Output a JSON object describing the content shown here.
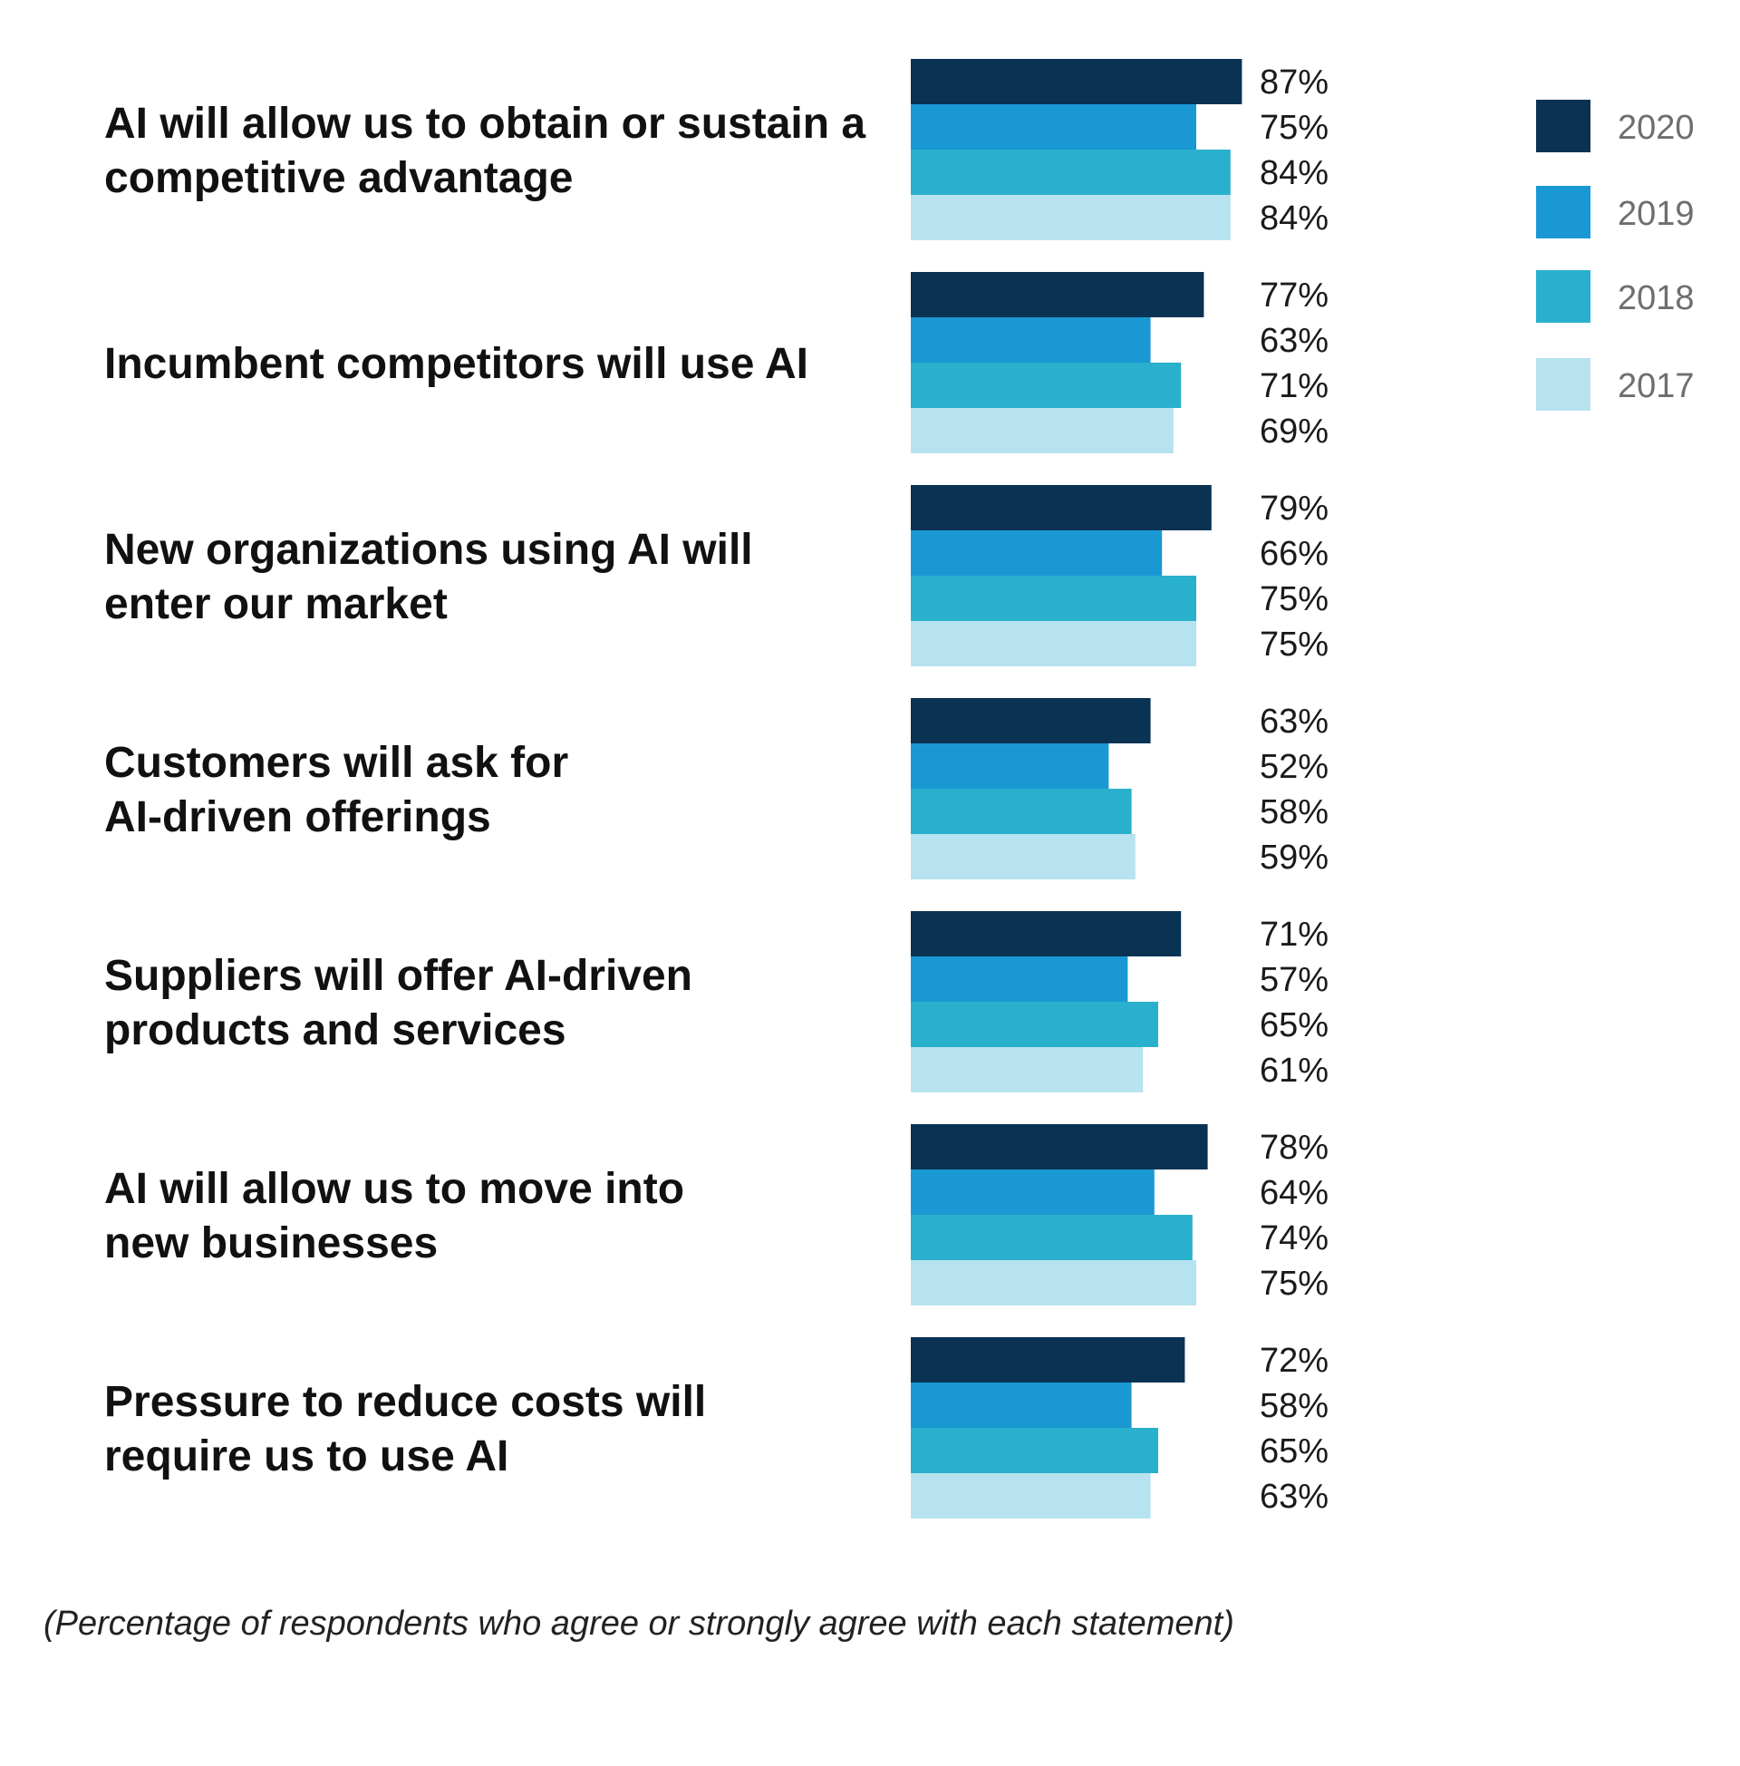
{
  "chart_data": {
    "type": "bar",
    "orientation": "horizontal",
    "categories": [
      [
        "AI will allow us to obtain or sustain a",
        "competitive advantage"
      ],
      [
        "Incumbent competitors will use AI"
      ],
      [
        "New organizations using AI will",
        "enter our market"
      ],
      [
        "Customers will ask for",
        "AI-driven offerings"
      ],
      [
        "Suppliers will offer AI-driven",
        "products and services"
      ],
      [
        "AI will allow us to move into",
        "new businesses"
      ],
      [
        "Pressure to reduce costs will",
        "require us to use AI"
      ]
    ],
    "series": [
      {
        "name": "2020",
        "color": "#0a3253",
        "values": [
          87,
          77,
          79,
          63,
          71,
          78,
          72
        ]
      },
      {
        "name": "2019",
        "color": "#1a98d4",
        "values": [
          75,
          63,
          66,
          52,
          57,
          64,
          58
        ]
      },
      {
        "name": "2018",
        "color": "#29b0cc",
        "values": [
          84,
          71,
          75,
          58,
          65,
          74,
          65
        ]
      },
      {
        "name": "2017",
        "color": "#b6e3ef",
        "values": [
          84,
          69,
          75,
          59,
          61,
          75,
          63
        ]
      }
    ],
    "value_suffix": "%",
    "xlim": [
      0,
      100
    ],
    "grid": false,
    "legend_position": "top-right",
    "footnote": "(Percentage of respondents who agree or strongly agree with each statement)"
  }
}
